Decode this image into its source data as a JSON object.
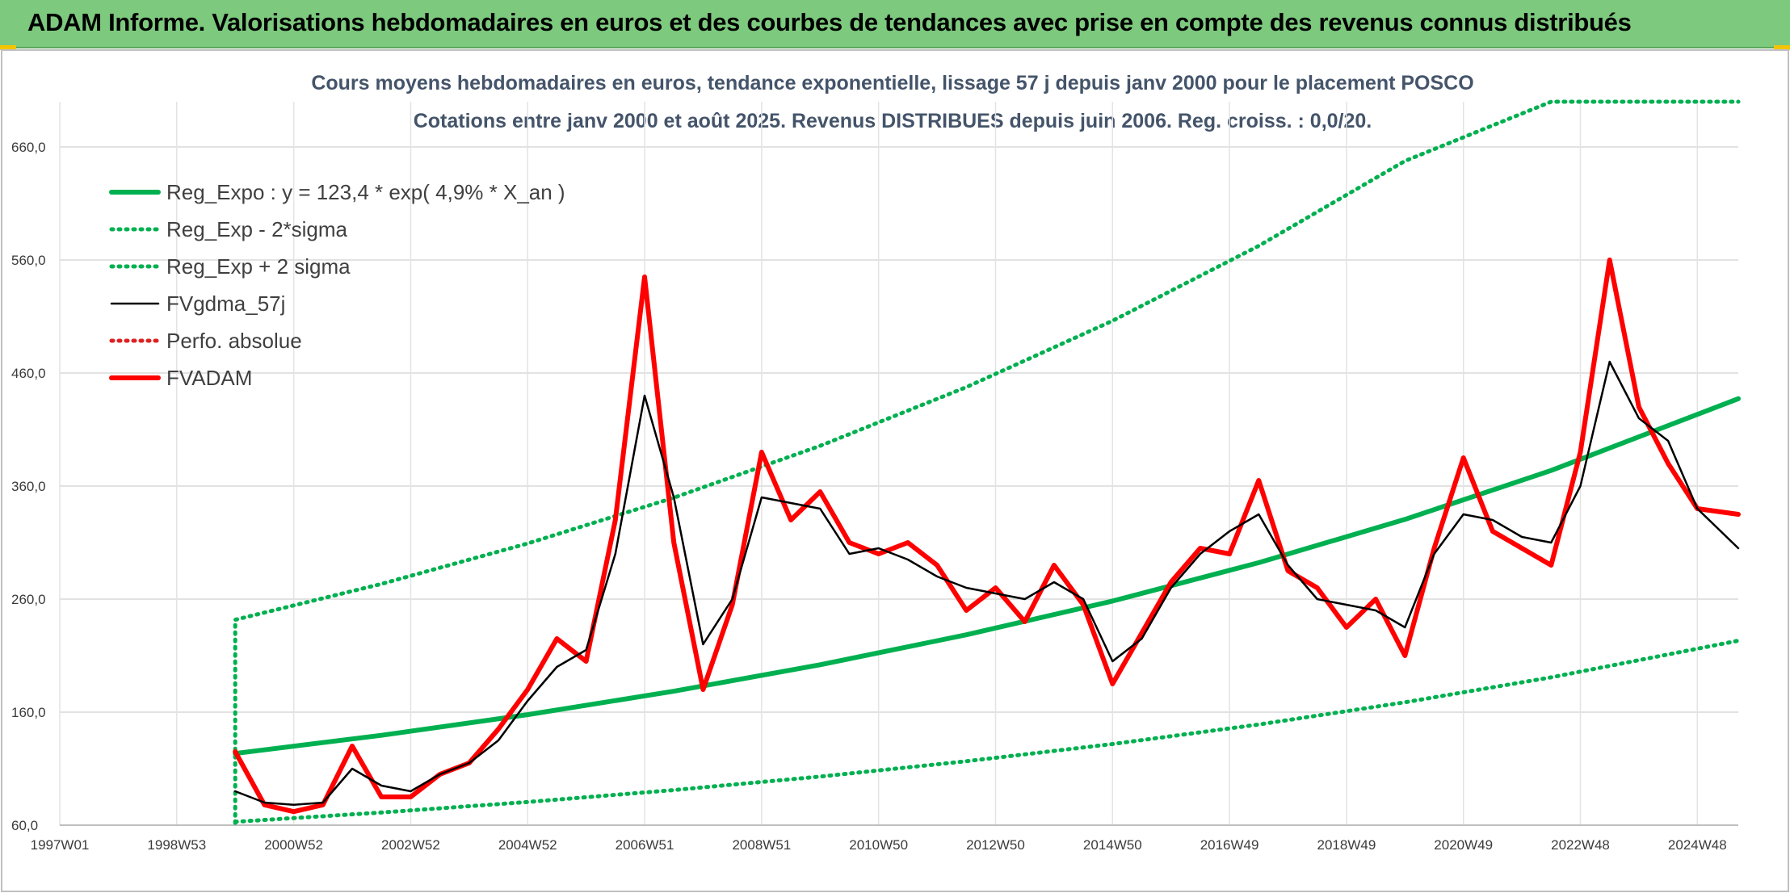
{
  "header": {
    "title": "ADAM Informe. Valorisations hebdomadaires en euros et des courbes de tendances avec prise en compte des revenus connus distribués"
  },
  "chart_data": {
    "type": "line",
    "title": "Cours moyens hebdomadaires en euros, tendance exponentielle, lissage 57 j depuis janv 2000 pour le placement POSCO",
    "subtitle": "Cotations entre janv 2000 et août 2025. Revenus DISTRIBUES depuis juin 2006. Reg. croiss. : 0,0/20.",
    "xlabel": "",
    "ylabel": "",
    "ylim": [
      60,
      700
    ],
    "yticks": [
      60,
      160,
      260,
      360,
      460,
      560,
      660
    ],
    "ytick_labels": [
      "60,0",
      "160,0",
      "260,0",
      "360,0",
      "460,0",
      "560,0",
      "660,0"
    ],
    "xlim": [
      1997.0,
      2025.7
    ],
    "xticks": [
      1997.0,
      1999.0,
      2001.0,
      2003.0,
      2005.0,
      2007.0,
      2009.0,
      2011.0,
      2013.0,
      2015.0,
      2017.0,
      2019.0,
      2021.0,
      2023.0,
      2025.0
    ],
    "xtick_labels": [
      "1997W01",
      "1998W53",
      "2000W52",
      "2002W52",
      "2004W52",
      "2006W51",
      "2008W51",
      "2010W50",
      "2012W50",
      "2014W50",
      "2016W49",
      "2018W49",
      "2020W49",
      "2022W48",
      "2024W48"
    ],
    "grid": true,
    "legend_position": "top-left",
    "colors": {
      "trend": "#00b050",
      "smooth": "#000000",
      "price": "#ff0000",
      "perf": "#e02020",
      "title": "#44546a",
      "banner": "#7dc97e"
    },
    "series": [
      {
        "name": "Reg_Expo : y = 123,4 * exp( 4,9% *  X_an )",
        "style": "solid-thick",
        "color": "#00b050",
        "x": [
          2000.0,
          2002.5,
          2005.0,
          2007.5,
          2010.0,
          2012.5,
          2015.0,
          2017.5,
          2020.0,
          2022.5,
          2025.7
        ],
        "values": [
          123.4,
          139.5,
          157.8,
          178.5,
          201.9,
          228.4,
          258.3,
          292.2,
          330.5,
          373.8,
          437.3
        ]
      },
      {
        "name": "Reg_Exp - 2*sigma",
        "style": "dotted",
        "color": "#00b050",
        "x": [
          2000.0,
          2002.5,
          2005.0,
          2007.5,
          2010.0,
          2012.5,
          2015.0,
          2017.5,
          2020.0,
          2022.5,
          2025.7
        ],
        "values": [
          63.0,
          71.2,
          80.5,
          91.1,
          103.0,
          116.6,
          131.8,
          149.1,
          168.7,
          190.8,
          223.2
        ]
      },
      {
        "name": "Reg_Exp + 2 sigma",
        "style": "dotted",
        "color": "#00b050",
        "x": [
          2000.0,
          2002.5,
          2005.0,
          2007.5,
          2010.0,
          2012.5,
          2015.0,
          2017.5,
          2020.0,
          2022.5,
          2025.7
        ],
        "values": [
          241.7,
          273.4,
          309.2,
          349.7,
          395.6,
          447.5,
          506.2,
          572.5,
          647.6,
          700.0,
          700.0
        ]
      },
      {
        "name": "FVgdma_57j",
        "style": "solid-thin",
        "color": "#000000",
        "x": [
          2000.0,
          2000.5,
          2001.0,
          2001.5,
          2002.0,
          2002.5,
          2003.0,
          2003.5,
          2004.0,
          2004.5,
          2005.0,
          2005.5,
          2006.0,
          2006.5,
          2007.0,
          2007.5,
          2008.0,
          2008.5,
          2009.0,
          2009.5,
          2010.0,
          2010.5,
          2011.0,
          2011.5,
          2012.0,
          2012.5,
          2013.0,
          2013.5,
          2014.0,
          2014.5,
          2015.0,
          2015.5,
          2016.0,
          2016.5,
          2017.0,
          2017.5,
          2018.0,
          2018.5,
          2019.0,
          2019.5,
          2020.0,
          2020.5,
          2021.0,
          2021.5,
          2022.0,
          2022.5,
          2023.0,
          2023.5,
          2024.0,
          2024.5,
          2025.0,
          2025.7
        ],
        "values": [
          90,
          80,
          78,
          80,
          110,
          95,
          90,
          105,
          115,
          135,
          170,
          200,
          215,
          300,
          440,
          350,
          220,
          260,
          350,
          345,
          340,
          300,
          305,
          295,
          280,
          270,
          265,
          260,
          275,
          260,
          205,
          225,
          270,
          300,
          320,
          335,
          290,
          260,
          255,
          250,
          235,
          300,
          335,
          330,
          315,
          310,
          360,
          470,
          420,
          400,
          340,
          305
        ]
      },
      {
        "name": "Perfo. absolue",
        "style": "dotted",
        "color": "#e02020",
        "x": [],
        "values": []
      },
      {
        "name": "FVADAM",
        "style": "solid-thick",
        "color": "#ff0000",
        "x": [
          2000.0,
          2000.5,
          2001.0,
          2001.5,
          2002.0,
          2002.5,
          2003.0,
          2003.5,
          2004.0,
          2004.5,
          2005.0,
          2005.5,
          2006.0,
          2006.5,
          2007.0,
          2007.5,
          2008.0,
          2008.5,
          2009.0,
          2009.5,
          2010.0,
          2010.5,
          2011.0,
          2011.5,
          2012.0,
          2012.5,
          2013.0,
          2013.5,
          2014.0,
          2014.5,
          2015.0,
          2015.5,
          2016.0,
          2016.5,
          2017.0,
          2017.5,
          2018.0,
          2018.5,
          2019.0,
          2019.5,
          2020.0,
          2020.5,
          2021.0,
          2021.5,
          2022.0,
          2022.5,
          2023.0,
          2023.5,
          2024.0,
          2024.5,
          2025.0,
          2025.7
        ],
        "values": [
          125,
          78,
          72,
          78,
          130,
          85,
          85,
          105,
          115,
          145,
          180,
          225,
          205,
          330,
          545,
          310,
          180,
          255,
          390,
          330,
          355,
          310,
          300,
          310,
          290,
          250,
          270,
          240,
          290,
          255,
          185,
          230,
          275,
          305,
          300,
          365,
          285,
          270,
          235,
          260,
          210,
          305,
          385,
          320,
          305,
          290,
          390,
          560,
          430,
          380,
          340,
          335
        ]
      }
    ]
  }
}
